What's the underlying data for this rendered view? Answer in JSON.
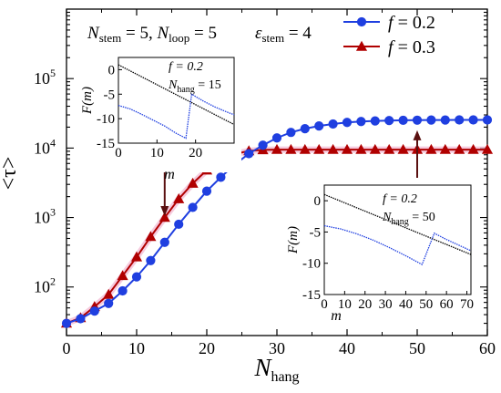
{
  "chart_data": [
    {
      "type": "line",
      "id": "main",
      "xlabel": "N",
      "xlabel_sub": "hang",
      "ylabel": "<τ>",
      "xlim": [
        0,
        60
      ],
      "ylim": [
        20,
        1000000
      ],
      "yscale": "log",
      "xticks": [
        0,
        10,
        20,
        30,
        40,
        50,
        60
      ],
      "yticks": [
        {
          "v": 100,
          "m": "2"
        },
        {
          "v": 1000,
          "m": "3"
        },
        {
          "v": 10000,
          "m": "4"
        },
        {
          "v": 100000,
          "m": "5"
        }
      ],
      "annotation": {
        "N_stem": "5",
        "N_loop": "5",
        "eps_stem": "4",
        "eq": " = ",
        "sep": ", ",
        "N": "N",
        "stem": "stem",
        "loop": "loop",
        "eps": "ε"
      },
      "legend_position": "top-right",
      "series": [
        {
          "name": "f = 0.2",
          "color": "#1f3fe0",
          "marker": "circle",
          "x": [
            0,
            2,
            4,
            6,
            8,
            10,
            12,
            14,
            16,
            18,
            20,
            22,
            24,
            26,
            28,
            30,
            32,
            34,
            36,
            38,
            40,
            42,
            44,
            46,
            48,
            50,
            52,
            54,
            56,
            58,
            60
          ],
          "y": [
            30,
            35,
            45,
            58,
            88,
            140,
            240,
            440,
            800,
            1400,
            2400,
            3800,
            5800,
            8300,
            11000,
            14000,
            16800,
            19000,
            20800,
            22200,
            23400,
            24100,
            24600,
            24900,
            25100,
            25200,
            25300,
            25350,
            25400,
            25400,
            25400
          ]
        },
        {
          "name": "f = 0.3",
          "color": "#b00000",
          "marker": "triangle",
          "x": [
            0,
            2,
            4,
            6,
            8,
            10,
            12,
            14,
            16,
            18,
            20,
            22,
            24,
            26,
            28,
            30,
            32,
            34,
            36,
            38,
            40,
            42,
            44,
            46,
            48,
            50,
            52,
            54,
            56,
            58,
            60
          ],
          "y": [
            30,
            36,
            52,
            78,
            145,
            270,
            530,
            1000,
            1850,
            3100,
            4800,
            6700,
            8200,
            9100,
            9400,
            9500,
            9500,
            9500,
            9500,
            9500,
            9500,
            9500,
            9500,
            9500,
            9500,
            9500,
            9500,
            9500,
            9500,
            9500,
            9500
          ]
        }
      ],
      "arrows": [
        {
          "x": 14,
          "y_from": 10500,
          "y_to": 1050
        },
        {
          "x": 50,
          "y_from": 1800,
          "y_to": 18000
        }
      ]
    },
    {
      "type": "line",
      "id": "inset1",
      "xlabel": "m",
      "ylabel": "F(m)",
      "xlim": [
        0,
        30
      ],
      "ylim": [
        -15,
        2.5
      ],
      "xticks": [
        0,
        10,
        20
      ],
      "yticks": [
        0,
        -5,
        -10,
        -15
      ],
      "label_f": "f = 0.2",
      "label_N": "N",
      "label_hang": "hang",
      "label_value": " = 15",
      "series": [
        {
          "name": "black",
          "color": "#000000",
          "x": [
            0,
            30
          ],
          "y": [
            1,
            -11.2
          ]
        },
        {
          "name": "blue",
          "color": "#1f3fe0",
          "x": [
            0,
            3,
            6,
            9,
            12,
            15,
            17.5,
            19,
            22,
            25,
            28,
            30
          ],
          "y": [
            -7.3,
            -8.0,
            -9.1,
            -10.3,
            -11.5,
            -13.0,
            -14.0,
            -5.0,
            -6.4,
            -7.6,
            -8.6,
            -9.2
          ]
        }
      ]
    },
    {
      "type": "line",
      "id": "inset2",
      "xlabel": "m",
      "ylabel": "F(m)",
      "xlim": [
        0,
        72
      ],
      "ylim": [
        -15,
        2.5
      ],
      "xticks": [
        0,
        10,
        20,
        30,
        40,
        50,
        60,
        70
      ],
      "yticks": [
        0,
        -5,
        -10,
        -15
      ],
      "label_f": "f = 0.2",
      "label_N": "N",
      "label_hang": "hang",
      "label_value": " = 50",
      "series": [
        {
          "name": "black",
          "color": "#000000",
          "x": [
            0,
            72
          ],
          "y": [
            1,
            -8.6
          ]
        },
        {
          "name": "blue",
          "color": "#1f3fe0",
          "x": [
            0,
            8,
            16,
            24,
            32,
            40,
            48,
            54,
            60,
            66,
            72
          ],
          "y": [
            -4.0,
            -4.5,
            -5.3,
            -6.3,
            -7.5,
            -8.8,
            -10.2,
            -5.2,
            -6.2,
            -7.1,
            -8.0
          ]
        }
      ]
    }
  ]
}
